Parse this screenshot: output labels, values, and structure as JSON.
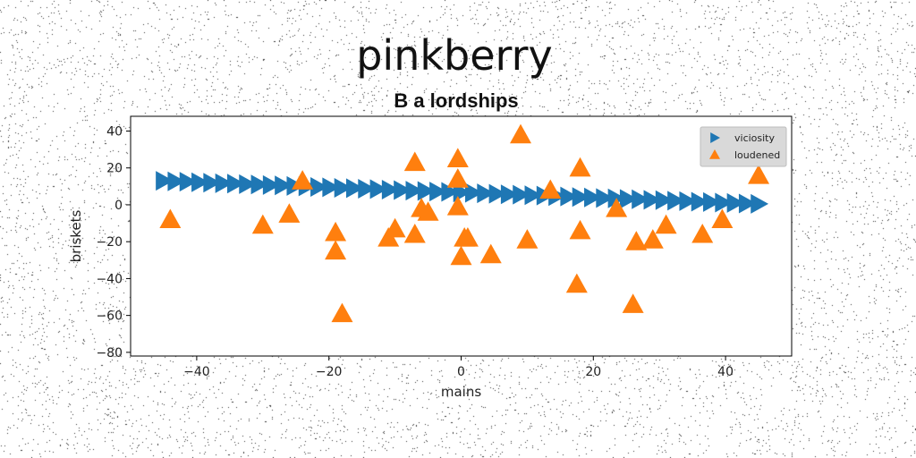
{
  "chart_data": {
    "type": "scatter",
    "suptitle": "pinkberry",
    "title": "B a lordships",
    "xlabel": "mains",
    "ylabel": "briskets",
    "xlim": [
      -50,
      50
    ],
    "ylim": [
      -82,
      48
    ],
    "xticks": [
      -40,
      -20,
      0,
      20,
      40
    ],
    "yticks": [
      40,
      20,
      0,
      -20,
      -40,
      -60,
      -80
    ],
    "grid": false,
    "legend_position": "top-right",
    "series": [
      {
        "name": "viciosity",
        "marker": "triangle-right",
        "color": "#1f77b4",
        "x": [
          -45.0,
          -43.2,
          -41.4,
          -39.6,
          -37.8,
          -36.0,
          -34.2,
          -32.4,
          -30.6,
          -28.8,
          -27.0,
          -25.2,
          -23.4,
          -21.6,
          -19.8,
          -18.0,
          -16.2,
          -14.4,
          -12.6,
          -10.8,
          -9.0,
          -7.2,
          -5.4,
          -3.6,
          -1.8,
          0.0,
          1.8,
          3.6,
          5.4,
          7.2,
          9.0,
          10.8,
          12.6,
          14.4,
          16.2,
          18.0,
          19.8,
          21.6,
          23.4,
          25.2,
          27.0,
          28.8,
          30.6,
          32.4,
          34.2,
          36.0,
          37.8,
          39.6,
          41.4,
          43.2,
          45.0
        ],
        "y": [
          13.0,
          12.7,
          12.5,
          12.2,
          12.0,
          11.7,
          11.5,
          11.2,
          11.0,
          10.7,
          10.5,
          10.2,
          10.0,
          9.7,
          9.5,
          9.2,
          9.0,
          8.7,
          8.5,
          8.2,
          8.0,
          7.7,
          7.5,
          7.2,
          7.0,
          6.7,
          6.5,
          6.2,
          6.0,
          5.7,
          5.5,
          5.2,
          5.0,
          4.7,
          4.5,
          4.2,
          4.0,
          3.7,
          3.5,
          3.2,
          3.0,
          2.7,
          2.5,
          2.2,
          2.0,
          1.7,
          1.5,
          1.2,
          1.0,
          0.7,
          0.5
        ]
      },
      {
        "name": "loudened",
        "marker": "triangle-up",
        "color": "#ff7f0e",
        "x": [
          -44,
          -30,
          -26,
          -24,
          -19,
          -19,
          -18,
          -11,
          -10,
          -7,
          -7,
          -6,
          -5,
          -0.5,
          -0.5,
          -0.5,
          0,
          0.5,
          1,
          4.5,
          9,
          10,
          13.5,
          17.5,
          18,
          18,
          23.5,
          26,
          26.5,
          29,
          31,
          36.5,
          39.5,
          45
        ],
        "y": [
          -8,
          -11,
          -5,
          13,
          -25,
          -15,
          -59,
          -18,
          -13,
          23,
          -16,
          -2,
          -4,
          25,
          14,
          -1,
          -28,
          -18,
          -18,
          -27,
          38,
          -19,
          8,
          -43,
          -14,
          20,
          -2,
          -54,
          -20,
          -19,
          -11,
          -16,
          -8,
          16
        ]
      }
    ]
  }
}
